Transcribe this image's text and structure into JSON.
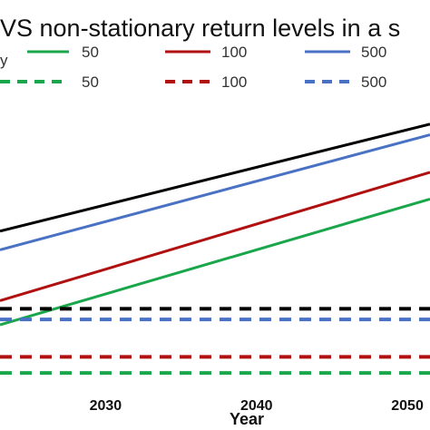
{
  "chart_data": {
    "type": "line",
    "title": "VS non-stationary return levels in a s",
    "xlabel": "Year",
    "ylabel": "",
    "x_ticks": [
      "2030",
      "2040",
      "2050"
    ],
    "xlim": [
      2023,
      2051.5
    ],
    "legend_position": "top",
    "legend_fragment": "y",
    "colors": {
      "black": "#000000",
      "green": "#1aa64a",
      "red": "#b01010",
      "blue": "#4a72c4"
    },
    "series": [
      {
        "name": "",
        "color_key": "black",
        "style": "solid",
        "x": [
          2023,
          2051.5
        ],
        "y": [
          0.56,
          0.96
        ]
      },
      {
        "name": "50",
        "color_key": "green",
        "style": "solid",
        "x": [
          2023,
          2051.5
        ],
        "y": [
          0.21,
          0.68
        ]
      },
      {
        "name": "100",
        "color_key": "red",
        "style": "solid",
        "x": [
          2023,
          2051.5
        ],
        "y": [
          0.3,
          0.78
        ]
      },
      {
        "name": "500",
        "color_key": "blue",
        "style": "solid",
        "x": [
          2023,
          2051.5
        ],
        "y": [
          0.49,
          0.92
        ]
      },
      {
        "name": "",
        "color_key": "black",
        "style": "dashed",
        "x": [
          2023,
          2051.5
        ],
        "y": [
          0.27,
          0.27
        ]
      },
      {
        "name": "50",
        "color_key": "green",
        "style": "dashed",
        "x": [
          2023,
          2051.5
        ],
        "y": [
          0.03,
          0.03
        ]
      },
      {
        "name": "100",
        "color_key": "red",
        "style": "dashed",
        "x": [
          2023,
          2051.5
        ],
        "y": [
          0.09,
          0.09
        ]
      },
      {
        "name": "500",
        "color_key": "blue",
        "style": "dashed",
        "x": [
          2023,
          2051.5
        ],
        "y": [
          0.23,
          0.23
        ]
      }
    ],
    "ylim": [
      0,
      1
    ]
  }
}
